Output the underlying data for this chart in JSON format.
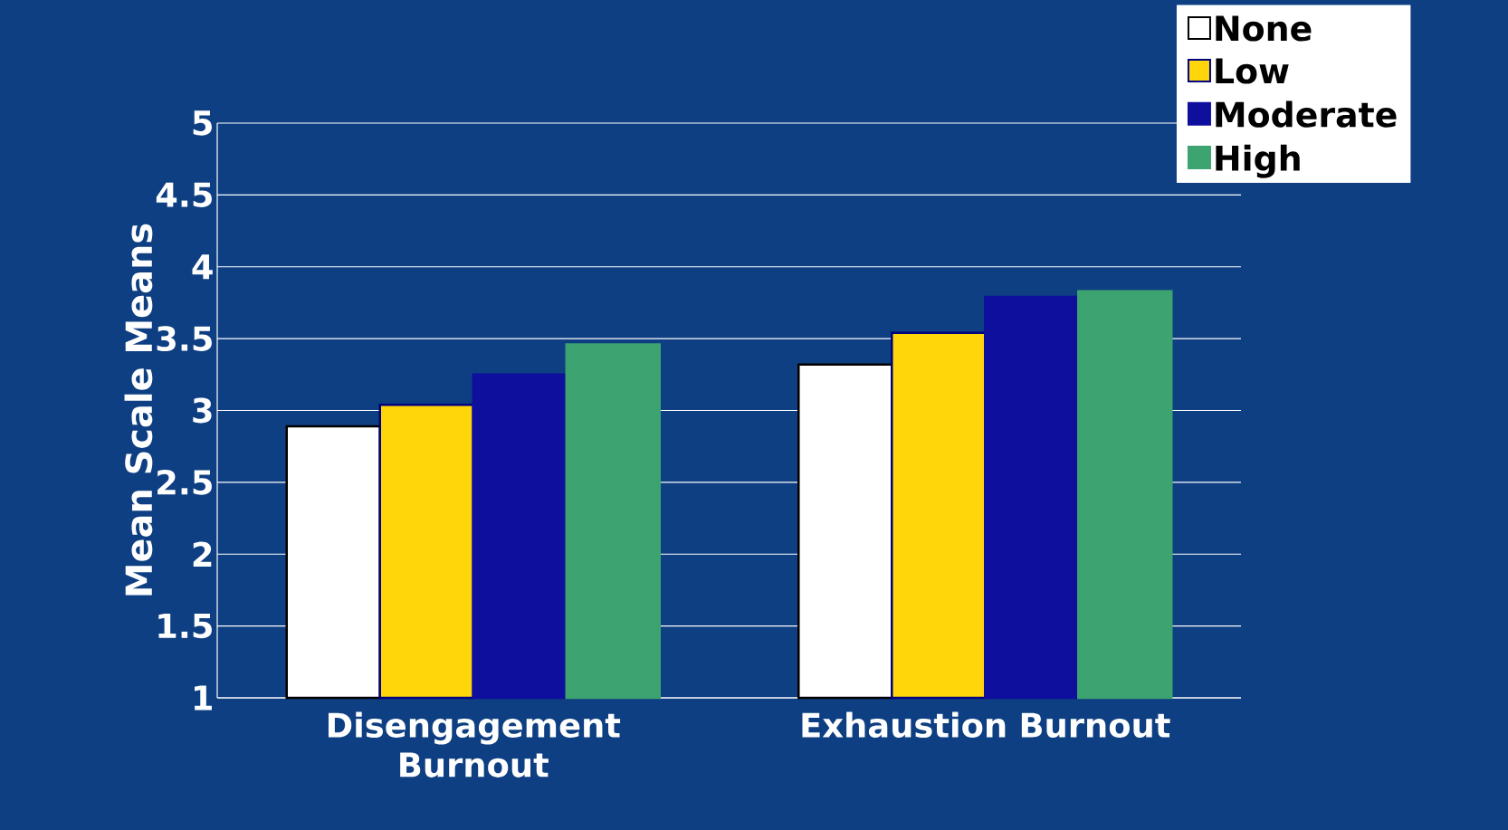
{
  "chart_data": {
    "type": "bar",
    "ylabel": "Mean Scale Means",
    "categories": [
      "Disengagement Burnout",
      "Exhaustion Burnout"
    ],
    "series": [
      {
        "name": "None",
        "color": "#ffffff",
        "values": [
          2.89,
          3.32
        ]
      },
      {
        "name": "Low",
        "color": "#ffd60a",
        "values": [
          3.04,
          3.54
        ]
      },
      {
        "name": "Moderate",
        "color": "#0f0f9e",
        "values": [
          3.25,
          3.79
        ]
      },
      {
        "name": "High",
        "color": "#3da370",
        "values": [
          3.46,
          3.83
        ]
      }
    ],
    "ylim": [
      1,
      5
    ],
    "yticks": [
      1,
      1.5,
      2,
      2.5,
      3,
      3.5,
      4,
      4.5,
      5
    ],
    "grid": "y",
    "legend": "top right"
  }
}
